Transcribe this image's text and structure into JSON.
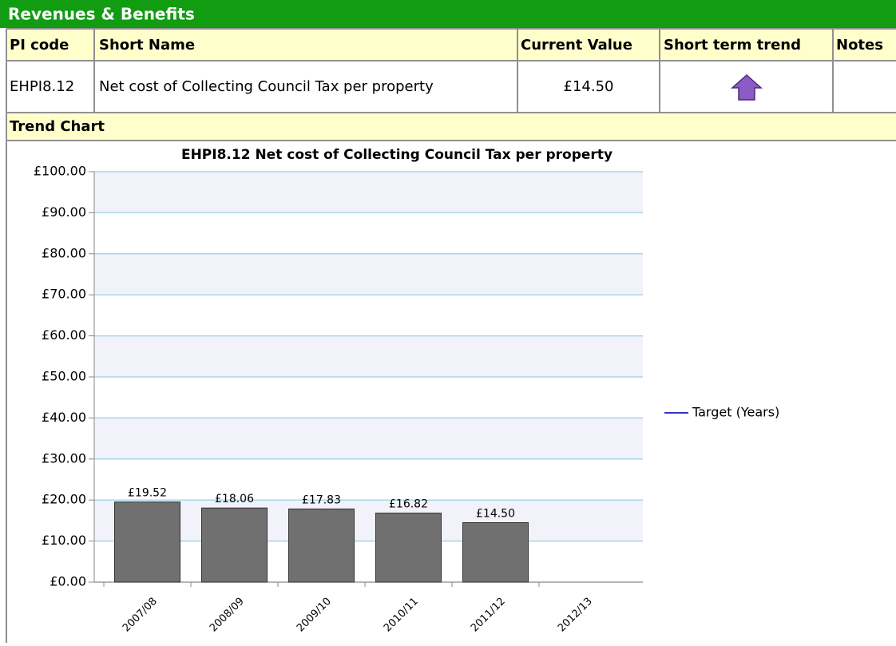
{
  "header": {
    "title": "Revenues & Benefits"
  },
  "table": {
    "columns": [
      "PI code",
      "Short Name",
      "Current Value",
      "Short term trend",
      "Notes"
    ],
    "rows": [
      [
        "EHPI8.12",
        "Net cost of Collecting Council Tax per property",
        "£14.50"
      ]
    ]
  },
  "section": {
    "title": "Trend Chart"
  },
  "chart_data": {
    "type": "bar",
    "title": "EHPI8.12 Net cost of Collecting Council Tax per property",
    "categories": [
      "2007/08",
      "2008/09",
      "2009/10",
      "2010/11",
      "2011/12",
      "2012/13"
    ],
    "values": [
      19.52,
      18.06,
      17.83,
      16.82,
      14.5,
      null
    ],
    "value_labels": [
      "£19.52",
      "£18.06",
      "£17.83",
      "£16.82",
      "£14.50",
      null
    ],
    "color": "#707070",
    "ylim": [
      0,
      100
    ],
    "yticks": [
      {
        "value": 0,
        "label": "£0.00"
      },
      {
        "value": 10,
        "label": "£10.00"
      },
      {
        "value": 20,
        "label": "£20.00"
      },
      {
        "value": 30,
        "label": "£30.00"
      },
      {
        "value": 40,
        "label": "£40.00"
      },
      {
        "value": 50,
        "label": "£50.00"
      },
      {
        "value": 60,
        "label": "£60.00"
      },
      {
        "value": 70,
        "label": "£70.00"
      },
      {
        "value": 80,
        "label": "£80.00"
      },
      {
        "value": 90,
        "label": "£90.00"
      },
      {
        "value": 100,
        "label": "£100.00"
      }
    ],
    "grid": true,
    "legend": [
      {
        "name": "Target (Years)",
        "color": "#3333cc"
      }
    ]
  }
}
